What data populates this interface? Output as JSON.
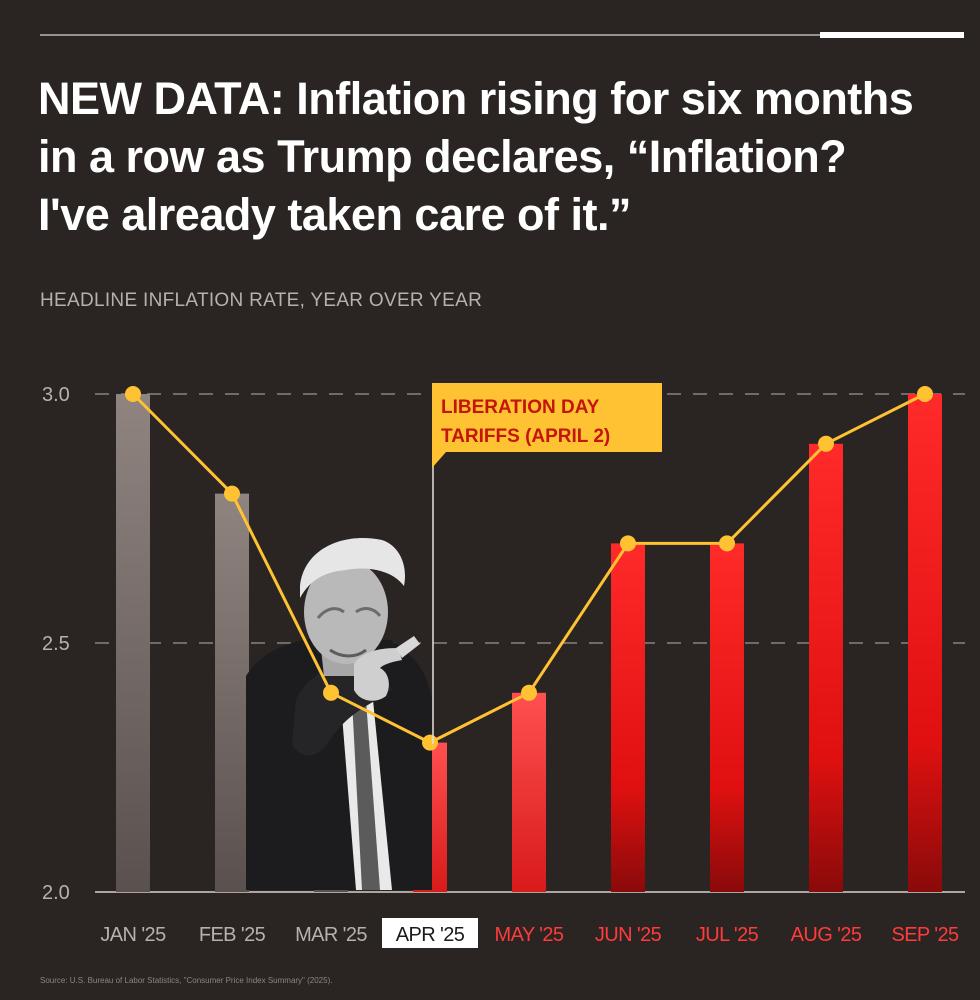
{
  "header": {
    "title_lines": [
      "NEW DATA: Inflation rising for six months",
      "in a row as Trump declares, “Inflation?",
      "I've already taken care of it.”"
    ],
    "subtitle": "HEADLINE INFLATION RATE, YEAR OVER YEAR"
  },
  "annotation": {
    "lines": [
      "LIBERATION DAY",
      "TARIFFS (APRIL 2)"
    ],
    "category": "APR '25"
  },
  "source": "Source: U.S. Bureau of Labor Statistics, \"Consumer Price Index Summary\" (2025).",
  "photo": {
    "subject": "Donald Trump pointing",
    "style": "black-and-white cutout"
  },
  "colors": {
    "background": "#2a2422",
    "gray_bar": "#8a7f7b",
    "red_bar": "#ff2a2a",
    "line": "#ffc233",
    "annotation_bg": "#ffc233",
    "annotation_text": "#c4150a",
    "red_label": "#ff3b3b",
    "gray_label": "#b8b0ac"
  },
  "chart_data": {
    "type": "bar",
    "categories": [
      "JAN '25",
      "FEB '25",
      "MAR '25",
      "APR '25",
      "MAY '25",
      "JUN '25",
      "JUL '25",
      "AUG '25",
      "SEP '25"
    ],
    "values": [
      3.0,
      2.8,
      2.4,
      2.3,
      2.4,
      2.7,
      2.7,
      2.9,
      3.0
    ],
    "overlay": "line",
    "yticks": [
      "2.0",
      "2.5",
      "3.0"
    ],
    "ylim": [
      2.0,
      3.0
    ],
    "highlighted_category": "APR '25",
    "grid": "dashed horizontal at 2.5 and 3.0"
  }
}
